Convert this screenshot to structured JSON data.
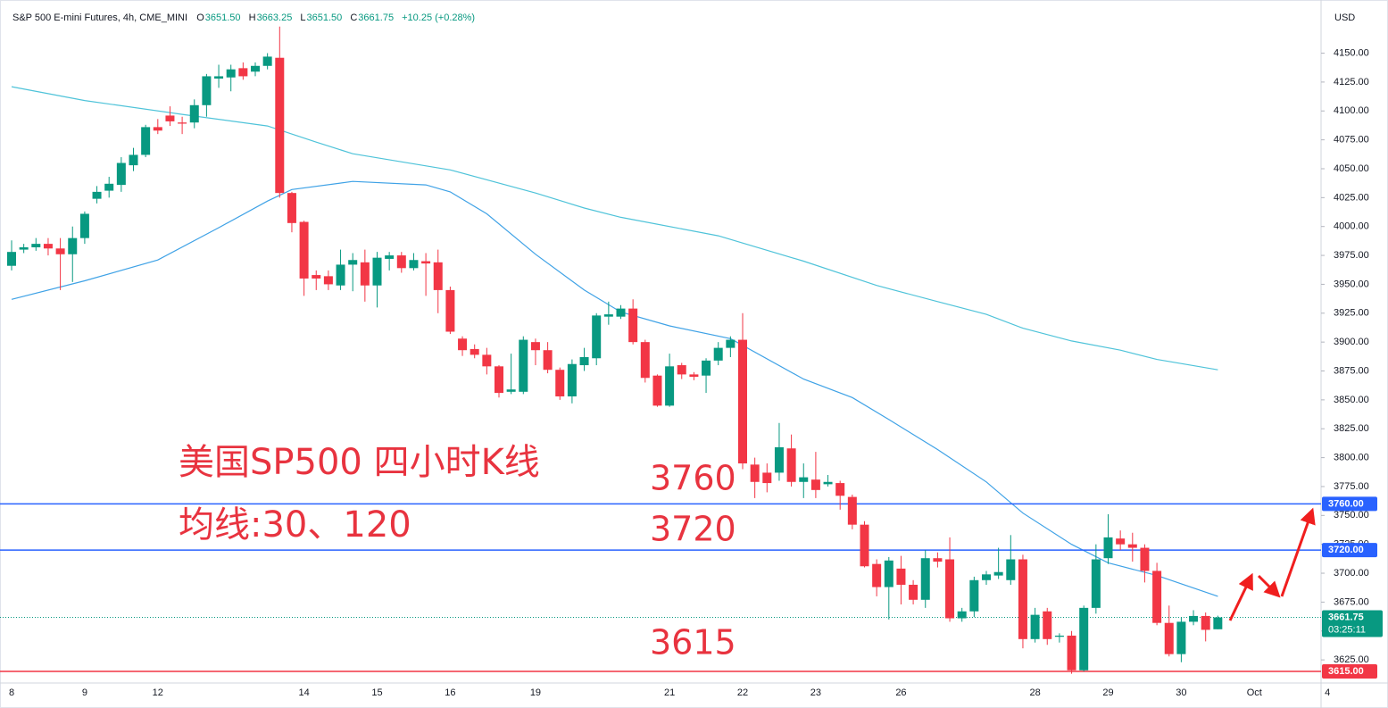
{
  "chart_data": {
    "type": "candlestick",
    "header": {
      "symbol": "S&P 500 E-mini Futures, 4h, CME_MINI",
      "ohlc": [
        {
          "label": "O",
          "value": "3651.50"
        },
        {
          "label": "H",
          "value": "3663.25"
        },
        {
          "label": "L",
          "value": "3651.50"
        },
        {
          "label": "C",
          "value": "3661.75"
        }
      ],
      "change": "+10.25 (+0.28%)"
    },
    "currency": "USD",
    "annotations": [
      "美国SP500 四小时K线",
      "均线:30、120",
      "3760",
      "3720",
      "3615"
    ],
    "categories": [
      "8",
      null,
      null,
      null,
      null,
      null,
      "9",
      null,
      null,
      null,
      null,
      null,
      "12",
      null,
      null,
      null,
      null,
      null,
      null,
      null,
      null,
      null,
      null,
      null,
      "14",
      null,
      null,
      null,
      null,
      null,
      "15",
      null,
      null,
      null,
      null,
      null,
      "16",
      null,
      null,
      null,
      null,
      null,
      null,
      "19",
      null,
      null,
      null,
      null,
      null,
      null,
      null,
      null,
      null,
      null,
      "21",
      null,
      null,
      null,
      null,
      null,
      "22",
      null,
      null,
      null,
      null,
      null,
      "23",
      null,
      null,
      null,
      null,
      null,
      null,
      "26",
      null,
      null,
      null,
      null,
      null,
      null,
      null,
      null,
      null,
      null,
      "28",
      null,
      null,
      null,
      null,
      null,
      "29",
      null,
      null,
      null,
      null,
      null,
      "30",
      null,
      null,
      null,
      null,
      null,
      "Oct",
      null,
      null,
      null,
      null,
      null,
      "4"
    ],
    "open": [
      3966,
      3980,
      3982,
      3985,
      3981,
      3976,
      3990,
      4024,
      4031,
      4036,
      4053,
      4062,
      4086,
      4096,
      4090,
      4090,
      4105,
      4128,
      4129,
      4137,
      4134,
      4139,
      4146,
      4029,
      4004,
      3958,
      3957,
      3949,
      3967,
      3969,
      3949,
      3972,
      3975,
      3964,
      3970,
      3969,
      3945,
      3903,
      3894,
      3889,
      3879,
      3857,
      3857,
      3900,
      3893,
      3876,
      3853,
      3880,
      3886,
      3922,
      3922,
      3929,
      3900,
      3871,
      3845,
      3880,
      3872,
      3871,
      3884,
      3895,
      3902,
      3794,
      3787,
      3787,
      3808,
      3779,
      3781,
      3777,
      3778,
      3766,
      3742,
      3708,
      3688,
      3704,
      3690,
      3677,
      3713,
      3712,
      3661,
      3667,
      3694,
      3698,
      3694,
      3712,
      3643,
      3667,
      3645,
      3646,
      3616,
      3670,
      3713,
      3730,
      3725,
      3722,
      3702,
      3657,
      3630,
      3658,
      3663,
      3651.5,
      null,
      null,
      null,
      null,
      null,
      null,
      null,
      null,
      null
    ],
    "high": [
      3988,
      3985,
      3990,
      3990,
      3990,
      4000,
      4013,
      4035,
      4043,
      4060,
      4068,
      4088,
      4093,
      4104,
      4095,
      4110,
      4132,
      4140,
      4140,
      4142,
      4142,
      4150,
      4173,
      4030,
      4005,
      3962,
      3962,
      3980,
      3977,
      3980,
      3978,
      3978,
      3978,
      3977,
      3977,
      3980,
      3948,
      3905,
      3898,
      3895,
      3880,
      3890,
      3905,
      3903,
      3900,
      3878,
      3885,
      3895,
      3925,
      3935,
      3932,
      3937,
      3902,
      3872,
      3890,
      3882,
      3874,
      3886,
      3900,
      3905,
      3925,
      3800,
      3795,
      3830,
      3820,
      3795,
      3805,
      3785,
      3780,
      3768,
      3745,
      3712,
      3714,
      3715,
      3694,
      3720,
      3718,
      3731,
      3670,
      3697,
      3702,
      3722,
      3733,
      3716,
      3670,
      3670,
      3648,
      3650,
      3672,
      3725,
      3751,
      3737,
      3735,
      3725,
      3709,
      3672,
      3662,
      3668,
      3666,
      3663.25,
      null,
      null,
      null,
      null,
      null,
      null,
      null,
      null,
      null
    ],
    "low": [
      3962,
      3977,
      3979,
      3975,
      3945,
      3952,
      3985,
      4020,
      4025,
      4030,
      4048,
      4060,
      4080,
      4087,
      4080,
      4085,
      4095,
      4120,
      4117,
      4127,
      4130,
      4136,
      4025,
      3995,
      3940,
      3945,
      3945,
      3945,
      3944,
      3935,
      3930,
      3962,
      3960,
      3962,
      3940,
      3925,
      3907,
      3888,
      3886,
      3872,
      3852,
      3855,
      3855,
      3880,
      3873,
      3850,
      3847,
      3875,
      3880,
      3915,
      3920,
      3898,
      3865,
      3844,
      3844,
      3868,
      3867,
      3856,
      3880,
      3887,
      3790,
      3765,
      3770,
      3780,
      3775,
      3765,
      3765,
      3775,
      3755,
      3738,
      3705,
      3680,
      3660,
      3673,
      3673,
      3670,
      3705,
      3658,
      3658,
      3662,
      3690,
      3695,
      3690,
      3635,
      3640,
      3638,
      3640,
      3613,
      3615,
      3665,
      3708,
      3720,
      3710,
      3692,
      3655,
      3628,
      3623,
      3655,
      3641,
      3651.5,
      null,
      null,
      null,
      null,
      null,
      null,
      null,
      null,
      null
    ],
    "close": [
      3978,
      3982,
      3985,
      3981,
      3976,
      3990,
      4011,
      4030,
      4037,
      4055,
      4062,
      4086,
      4083,
      4091,
      4089,
      4105,
      4130,
      4130,
      4136,
      4130,
      4139,
      4147,
      4029,
      4003,
      3955,
      3955,
      3950,
      3967,
      3971,
      3949,
      3973,
      3975,
      3964,
      3971,
      3968,
      3945,
      3909,
      3893,
      3889,
      3879,
      3856,
      3859,
      3902,
      3893,
      3876,
      3853,
      3881,
      3887,
      3923,
      3924,
      3929,
      3900,
      3869,
      3845,
      3879,
      3872,
      3870,
      3884,
      3895,
      3902,
      3795,
      3779,
      3778,
      3809,
      3779,
      3783,
      3772,
      3779,
      3767,
      3742,
      3706,
      3688,
      3711,
      3690,
      3677,
      3713,
      3710,
      3661,
      3667,
      3694,
      3699,
      3701,
      3712,
      3643,
      3664,
      3643,
      3646,
      3616,
      3670,
      3712,
      3731,
      3725,
      3722,
      3702,
      3657,
      3630,
      3658,
      3663,
      3651,
      3661.75,
      null,
      null,
      null,
      null,
      null,
      null,
      null,
      null,
      null
    ],
    "up_color": "#089981",
    "down_color": "#f23645",
    "moving_averages": [
      {
        "color": "#4fc3d9",
        "x": [
          0,
          6,
          14,
          21,
          25,
          28,
          36,
          43,
          47,
          50,
          58,
          65,
          71,
          76,
          80,
          83,
          87,
          91,
          94,
          99
        ],
        "values": [
          4121,
          4109,
          4097,
          4087,
          4073,
          4063,
          4049,
          4029,
          4016,
          4008,
          3992,
          3970,
          3949,
          3935,
          3924,
          3912,
          3901,
          3893,
          3885,
          3876
        ]
      },
      {
        "color": "#3fa2e6",
        "x": [
          0,
          6,
          12,
          17,
          21,
          23,
          28,
          34,
          36,
          39,
          43,
          47,
          50,
          54,
          59,
          65,
          69,
          72,
          76,
          80,
          83,
          87,
          90,
          94,
          99
        ],
        "values": [
          3937,
          3953,
          3971,
          3999,
          4022,
          4032,
          4039,
          4036,
          4030,
          4011,
          3976,
          3945,
          3926,
          3914,
          3903,
          3868,
          3852,
          3833,
          3807,
          3779,
          3752,
          3725,
          3709,
          3698,
          3680
        ]
      }
    ],
    "levels": [
      {
        "value": 3760,
        "label": "3760.00",
        "color": "#2962ff"
      },
      {
        "value": 3720,
        "label": "3720.00",
        "color": "#2962ff"
      },
      {
        "value": 3615,
        "label": "3615.00",
        "color": "#f23645"
      }
    ],
    "last_price": {
      "value": 3661.75,
      "label": "3661.75",
      "countdown": "03:25:11",
      "color": "#089981"
    },
    "ylim": [
      3605,
      4196
    ],
    "yticks": [
      {
        "value": 3625,
        "label": "3625.00"
      },
      {
        "value": 3650,
        "label": "3650.00"
      },
      {
        "value": 3675,
        "label": "3675.00"
      },
      {
        "value": 3700,
        "label": "3700.00"
      },
      {
        "value": 3725,
        "label": "3725.00"
      },
      {
        "value": 3750,
        "label": "3750.00"
      },
      {
        "value": 3775,
        "label": "3775.00"
      },
      {
        "value": 3800,
        "label": "3800.00"
      },
      {
        "value": 3825,
        "label": "3825.00"
      },
      {
        "value": 3850,
        "label": "3850.00"
      },
      {
        "value": 3875,
        "label": "3875.00"
      },
      {
        "value": 3900,
        "label": "3900.00"
      },
      {
        "value": 3925,
        "label": "3925.00"
      },
      {
        "value": 3950,
        "label": "3950.00"
      },
      {
        "value": 3975,
        "label": "3975.00"
      },
      {
        "value": 4000,
        "label": "4000.00"
      },
      {
        "value": 4025,
        "label": "4025.00"
      },
      {
        "value": 4050,
        "label": "4050.00"
      },
      {
        "value": 4075,
        "label": "4075.00"
      },
      {
        "value": 4100,
        "label": "4100.00"
      },
      {
        "value": 4125,
        "label": "4125.00"
      },
      {
        "value": 4150,
        "label": "4150.00"
      }
    ],
    "grid": false
  }
}
